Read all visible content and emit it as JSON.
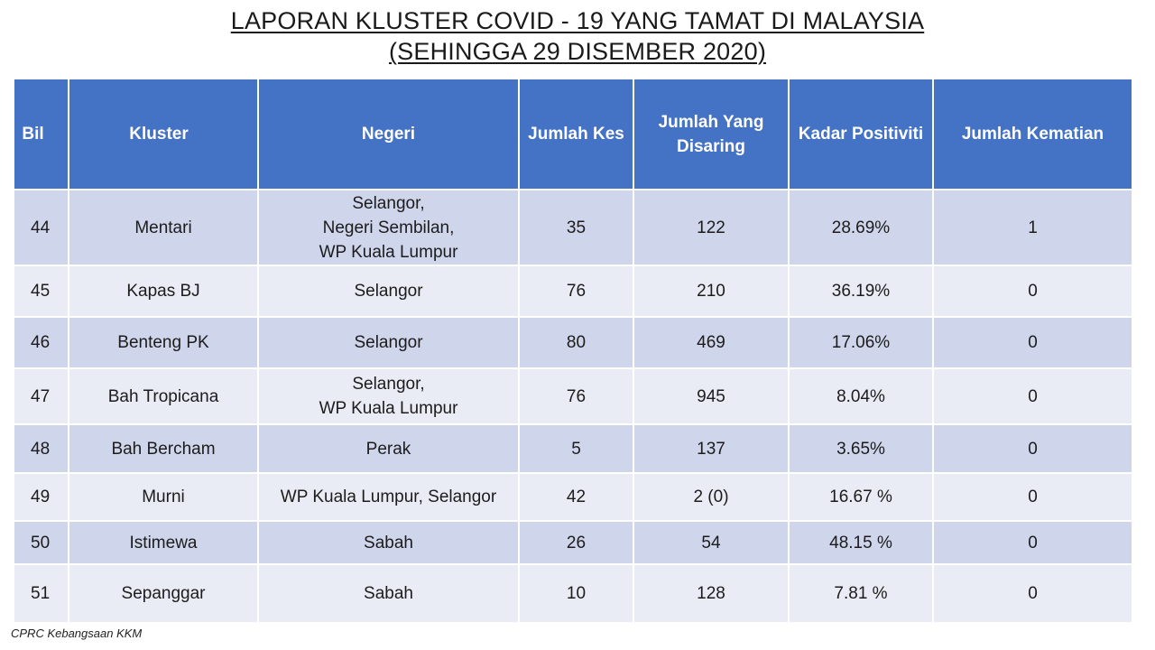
{
  "title": {
    "line1": "LAPORAN KLUSTER COVID - 19 YANG TAMAT DI MALAYSIA",
    "line2": "(SEHINGGA 29 DISEMBER 2020)"
  },
  "colors": {
    "header_bg": "#4472c4",
    "row_dark": "#cfd5ea",
    "row_light": "#e9ebf5"
  },
  "table": {
    "headers": [
      "Bil",
      "Kluster",
      "Negeri",
      "Jumlah Kes",
      "Jumlah Yang\nDisaring",
      "Kadar Positiviti",
      "Jumlah Kematian"
    ],
    "rows": [
      [
        "44",
        "Mentari",
        "Selangor,\nNegeri Sembilan,\nWP Kuala Lumpur",
        "35",
        "122",
        "28.69%",
        "1"
      ],
      [
        "45",
        "Kapas BJ",
        "Selangor",
        "76",
        "210",
        "36.19%",
        "0"
      ],
      [
        "46",
        "Benteng PK",
        "Selangor",
        "80",
        "469",
        "17.06%",
        "0"
      ],
      [
        "47",
        "Bah Tropicana",
        "Selangor,\nWP Kuala Lumpur",
        "76",
        "945",
        "8.04%",
        "0"
      ],
      [
        "48",
        "Bah Bercham",
        "Perak",
        "5",
        "137",
        "3.65%",
        "0"
      ],
      [
        "49",
        "Murni",
        "WP Kuala Lumpur, Selangor",
        "42",
        "2 (0)",
        "16.67 %",
        "0"
      ],
      [
        "50",
        "Istimewa",
        "Sabah",
        "26",
        "54",
        "48.15 %",
        "0"
      ],
      [
        "51",
        "Sepanggar",
        "Sabah",
        "10",
        "128",
        "7.81 %",
        "0"
      ]
    ]
  },
  "footer": "CPRC Kebangsaan KKM"
}
